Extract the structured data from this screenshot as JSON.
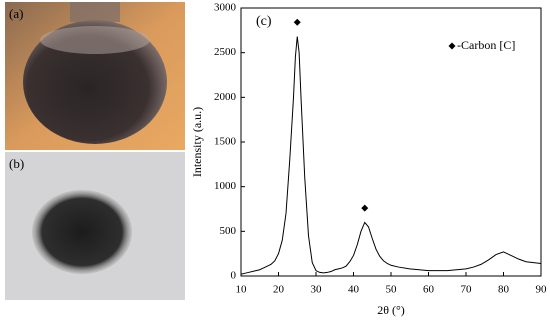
{
  "panel_labels": [
    "(a)",
    "(b)"
  ],
  "chart_data": {
    "type": "line",
    "title": "(c)",
    "x_label": "2θ (°)",
    "y_label": "Intensity (a.u.)",
    "x": [
      10,
      11,
      12,
      13,
      14,
      15,
      16,
      17,
      18,
      19,
      20,
      21,
      22,
      23,
      24,
      24.5,
      25,
      25.5,
      26,
      27,
      28,
      29,
      30,
      31,
      32,
      33,
      34,
      35,
      36,
      37,
      38,
      39,
      40,
      41,
      42,
      43,
      44,
      45,
      46,
      47,
      48,
      49,
      50,
      52,
      55,
      60,
      65,
      70,
      72,
      74,
      76,
      78,
      80,
      82,
      84,
      86,
      88,
      90
    ],
    "values": [
      20,
      30,
      40,
      50,
      60,
      70,
      90,
      110,
      130,
      170,
      250,
      400,
      700,
      1300,
      2000,
      2450,
      2680,
      2500,
      2000,
      1100,
      450,
      150,
      60,
      40,
      35,
      40,
      50,
      70,
      80,
      90,
      110,
      160,
      230,
      350,
      500,
      600,
      550,
      420,
      300,
      220,
      170,
      140,
      120,
      100,
      80,
      60,
      60,
      80,
      100,
      130,
      180,
      240,
      270,
      230,
      190,
      160,
      150,
      140
    ],
    "color": "#000000",
    "peak_markers": {
      "name": "-Carbon [C]",
      "x": [
        25,
        43
      ],
      "values": [
        2840,
        760
      ],
      "color": "#000000"
    },
    "xlim": [
      10,
      90
    ],
    "xticks": [
      10,
      20,
      30,
      40,
      50,
      60,
      70,
      80,
      90
    ],
    "ylim": [
      0,
      3000
    ],
    "yticks": [
      0,
      500,
      1000,
      1500,
      2000,
      2500,
      3000
    ],
    "grid": false
  }
}
